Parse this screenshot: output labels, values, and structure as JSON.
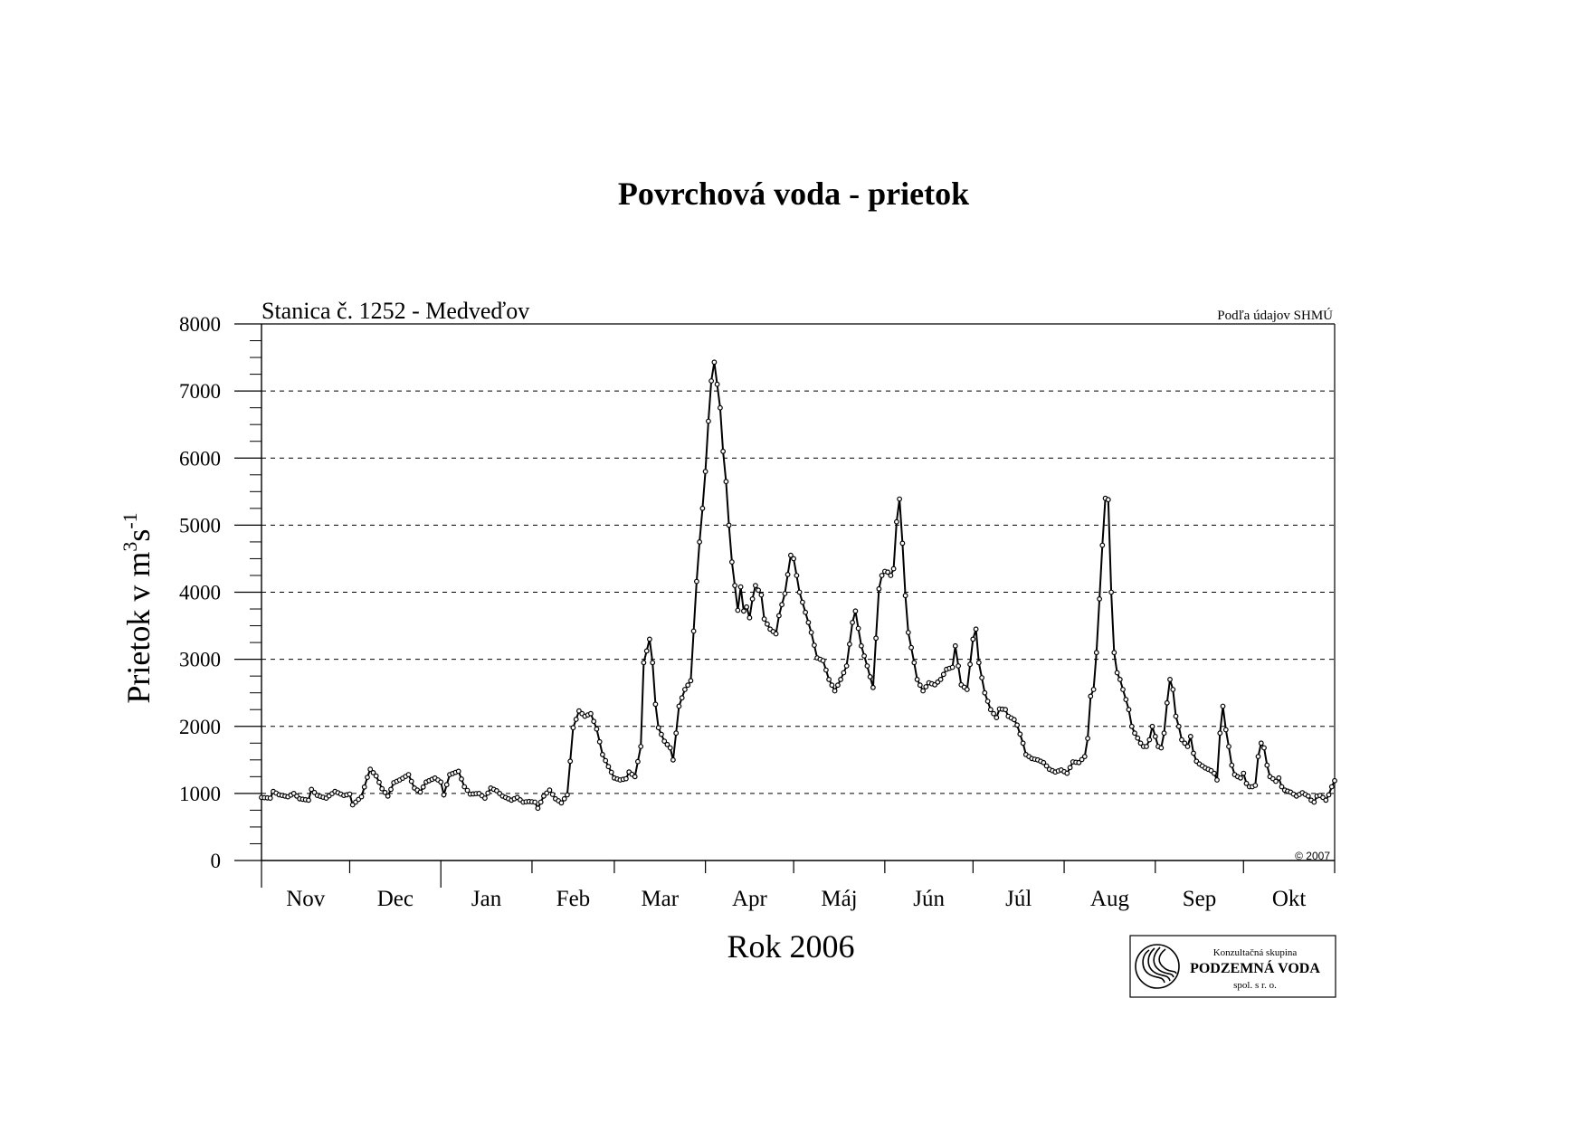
{
  "page": {
    "title": "Povrchová voda - prietok"
  },
  "chart_data": {
    "type": "line",
    "title": "Povrchová voda - prietok",
    "subtitle": "Stanica č. 1252 - Medveďov",
    "source_note": "Podľa údajov SHMÚ",
    "copyright": "© 2007",
    "xlabel": "Rok 2006",
    "ylabel_main": "Prietok v m",
    "ylabel_sup1": "3",
    "ylabel_mid": "s",
    "ylabel_sup2": "-1",
    "ylim": [
      0,
      8000
    ],
    "xlim": [
      0,
      365
    ],
    "y_ticks": [
      0,
      1000,
      2000,
      3000,
      4000,
      5000,
      6000,
      7000,
      8000
    ],
    "grid": "horizontal-dashed",
    "months": [
      "Nov",
      "Dec",
      "Jan",
      "Feb",
      "Mar",
      "Apr",
      "Máj",
      "Jún",
      "Júl",
      "Aug",
      "Sep",
      "Okt"
    ],
    "month_lengths": [
      30,
      31,
      31,
      28,
      31,
      30,
      31,
      30,
      31,
      31,
      30,
      31
    ],
    "keypoints": [
      [
        0,
        940
      ],
      [
        3,
        930
      ],
      [
        4,
        1030
      ],
      [
        6,
        980
      ],
      [
        9,
        950
      ],
      [
        11,
        1000
      ],
      [
        13,
        920
      ],
      [
        16,
        900
      ],
      [
        17,
        1060
      ],
      [
        19,
        970
      ],
      [
        22,
        930
      ],
      [
        25,
        1030
      ],
      [
        28,
        970
      ],
      [
        30,
        990
      ],
      [
        31,
        830
      ],
      [
        34,
        950
      ],
      [
        36,
        1240
      ],
      [
        37,
        1360
      ],
      [
        39,
        1260
      ],
      [
        41,
        1070
      ],
      [
        43,
        960
      ],
      [
        45,
        1160
      ],
      [
        47,
        1200
      ],
      [
        50,
        1280
      ],
      [
        52,
        1080
      ],
      [
        54,
        1020
      ],
      [
        56,
        1170
      ],
      [
        59,
        1230
      ],
      [
        61,
        1170
      ],
      [
        62,
        980
      ],
      [
        64,
        1280
      ],
      [
        67,
        1330
      ],
      [
        69,
        1100
      ],
      [
        71,
        990
      ],
      [
        74,
        1000
      ],
      [
        76,
        930
      ],
      [
        78,
        1080
      ],
      [
        80,
        1040
      ],
      [
        82,
        960
      ],
      [
        85,
        900
      ],
      [
        87,
        940
      ],
      [
        89,
        870
      ],
      [
        91,
        880
      ],
      [
        93,
        870
      ],
      [
        94,
        780
      ],
      [
        96,
        960
      ],
      [
        98,
        1050
      ],
      [
        100,
        920
      ],
      [
        102,
        860
      ],
      [
        104,
        980
      ],
      [
        106,
        1980
      ],
      [
        108,
        2230
      ],
      [
        110,
        2150
      ],
      [
        112,
        2190
      ],
      [
        114,
        1960
      ],
      [
        116,
        1580
      ],
      [
        118,
        1400
      ],
      [
        120,
        1230
      ],
      [
        122,
        1200
      ],
      [
        124,
        1220
      ],
      [
        125,
        1320
      ],
      [
        127,
        1250
      ],
      [
        129,
        1700
      ],
      [
        130,
        2950
      ],
      [
        132,
        3300
      ],
      [
        133,
        2950
      ],
      [
        134,
        2330
      ],
      [
        135,
        1980
      ],
      [
        137,
        1780
      ],
      [
        139,
        1680
      ],
      [
        140,
        1500
      ],
      [
        142,
        2300
      ],
      [
        144,
        2550
      ],
      [
        146,
        2680
      ],
      [
        148,
        4160
      ],
      [
        149,
        4750
      ],
      [
        150,
        5250
      ],
      [
        151,
        5800
      ],
      [
        152,
        6550
      ],
      [
        153,
        7150
      ],
      [
        154,
        7430
      ],
      [
        155,
        7100
      ],
      [
        156,
        6750
      ],
      [
        157,
        6100
      ],
      [
        158,
        5650
      ],
      [
        159,
        5000
      ],
      [
        160,
        4450
      ],
      [
        161,
        4100
      ],
      [
        162,
        3730
      ],
      [
        163,
        4080
      ],
      [
        164,
        3720
      ],
      [
        165,
        3780
      ],
      [
        166,
        3620
      ],
      [
        167,
        3900
      ],
      [
        168,
        4100
      ],
      [
        170,
        3960
      ],
      [
        171,
        3600
      ],
      [
        173,
        3450
      ],
      [
        175,
        3380
      ],
      [
        176,
        3650
      ],
      [
        178,
        3980
      ],
      [
        180,
        4550
      ],
      [
        181,
        4500
      ],
      [
        183,
        4000
      ],
      [
        185,
        3700
      ],
      [
        187,
        3400
      ],
      [
        189,
        3020
      ],
      [
        191,
        2980
      ],
      [
        193,
        2700
      ],
      [
        195,
        2530
      ],
      [
        197,
        2700
      ],
      [
        199,
        2900
      ],
      [
        201,
        3550
      ],
      [
        202,
        3720
      ],
      [
        204,
        3200
      ],
      [
        206,
        2900
      ],
      [
        208,
        2580
      ],
      [
        210,
        4050
      ],
      [
        211,
        4250
      ],
      [
        212,
        4310
      ],
      [
        213,
        4300
      ],
      [
        214,
        4250
      ],
      [
        215,
        4350
      ],
      [
        216,
        5050
      ],
      [
        217,
        5390
      ],
      [
        218,
        4730
      ],
      [
        219,
        3950
      ],
      [
        220,
        3400
      ],
      [
        222,
        2950
      ],
      [
        223,
        2700
      ],
      [
        225,
        2530
      ],
      [
        227,
        2650
      ],
      [
        229,
        2620
      ],
      [
        231,
        2700
      ],
      [
        233,
        2850
      ],
      [
        235,
        2880
      ],
      [
        236,
        3200
      ],
      [
        237,
        2900
      ],
      [
        238,
        2620
      ],
      [
        240,
        2550
      ],
      [
        242,
        3300
      ],
      [
        243,
        3450
      ],
      [
        244,
        2950
      ],
      [
        246,
        2500
      ],
      [
        248,
        2250
      ],
      [
        250,
        2130
      ],
      [
        251,
        2260
      ],
      [
        253,
        2250
      ],
      [
        254,
        2150
      ],
      [
        256,
        2100
      ],
      [
        257,
        2020
      ],
      [
        259,
        1750
      ],
      [
        260,
        1580
      ],
      [
        262,
        1520
      ],
      [
        264,
        1500
      ],
      [
        266,
        1460
      ],
      [
        268,
        1360
      ],
      [
        270,
        1320
      ],
      [
        272,
        1350
      ],
      [
        274,
        1300
      ],
      [
        276,
        1470
      ],
      [
        278,
        1460
      ],
      [
        280,
        1550
      ],
      [
        281,
        1820
      ],
      [
        282,
        2450
      ],
      [
        283,
        2550
      ],
      [
        284,
        3100
      ],
      [
        285,
        3900
      ],
      [
        286,
        4700
      ],
      [
        287,
        5400
      ],
      [
        288,
        5380
      ],
      [
        289,
        4000
      ],
      [
        290,
        3100
      ],
      [
        291,
        2800
      ],
      [
        292,
        2700
      ],
      [
        293,
        2550
      ],
      [
        294,
        2400
      ],
      [
        295,
        2250
      ],
      [
        296,
        2000
      ],
      [
        297,
        1900
      ],
      [
        299,
        1750
      ],
      [
        300,
        1700
      ],
      [
        301,
        1700
      ],
      [
        302,
        1800
      ],
      [
        303,
        2000
      ],
      [
        304,
        1850
      ],
      [
        305,
        1700
      ],
      [
        306,
        1680
      ],
      [
        307,
        1900
      ],
      [
        308,
        2350
      ],
      [
        309,
        2700
      ],
      [
        310,
        2550
      ],
      [
        311,
        2150
      ],
      [
        312,
        2000
      ],
      [
        313,
        1800
      ],
      [
        314,
        1750
      ],
      [
        315,
        1700
      ],
      [
        316,
        1850
      ],
      [
        317,
        1600
      ],
      [
        318,
        1480
      ],
      [
        319,
        1440
      ],
      [
        321,
        1380
      ],
      [
        323,
        1340
      ],
      [
        324,
        1300
      ],
      [
        325,
        1200
      ],
      [
        326,
        1900
      ],
      [
        327,
        2300
      ],
      [
        328,
        1950
      ],
      [
        329,
        1700
      ],
      [
        330,
        1420
      ],
      [
        331,
        1280
      ],
      [
        332,
        1250
      ],
      [
        333,
        1230
      ],
      [
        334,
        1300
      ],
      [
        335,
        1150
      ],
      [
        336,
        1100
      ],
      [
        337,
        1100
      ],
      [
        338,
        1120
      ],
      [
        339,
        1550
      ],
      [
        340,
        1750
      ],
      [
        341,
        1680
      ],
      [
        342,
        1420
      ],
      [
        343,
        1250
      ],
      [
        344,
        1220
      ],
      [
        345,
        1180
      ],
      [
        346,
        1230
      ],
      [
        347,
        1100
      ],
      [
        348,
        1050
      ],
      [
        350,
        1020
      ],
      [
        352,
        960
      ],
      [
        354,
        1010
      ],
      [
        356,
        960
      ],
      [
        357,
        900
      ],
      [
        358,
        870
      ],
      [
        359,
        960
      ],
      [
        360,
        970
      ],
      [
        361,
        940
      ],
      [
        362,
        900
      ],
      [
        363,
        980
      ],
      [
        364,
        1100
      ],
      [
        365,
        1190
      ]
    ]
  },
  "logo": {
    "line1": "Konzultačná skupina",
    "line2": "PODZEMNÁ VODA",
    "line3": "spol. s r. o."
  },
  "colors": {
    "line": "#000000",
    "grid": "#000000",
    "background": "#ffffff"
  }
}
